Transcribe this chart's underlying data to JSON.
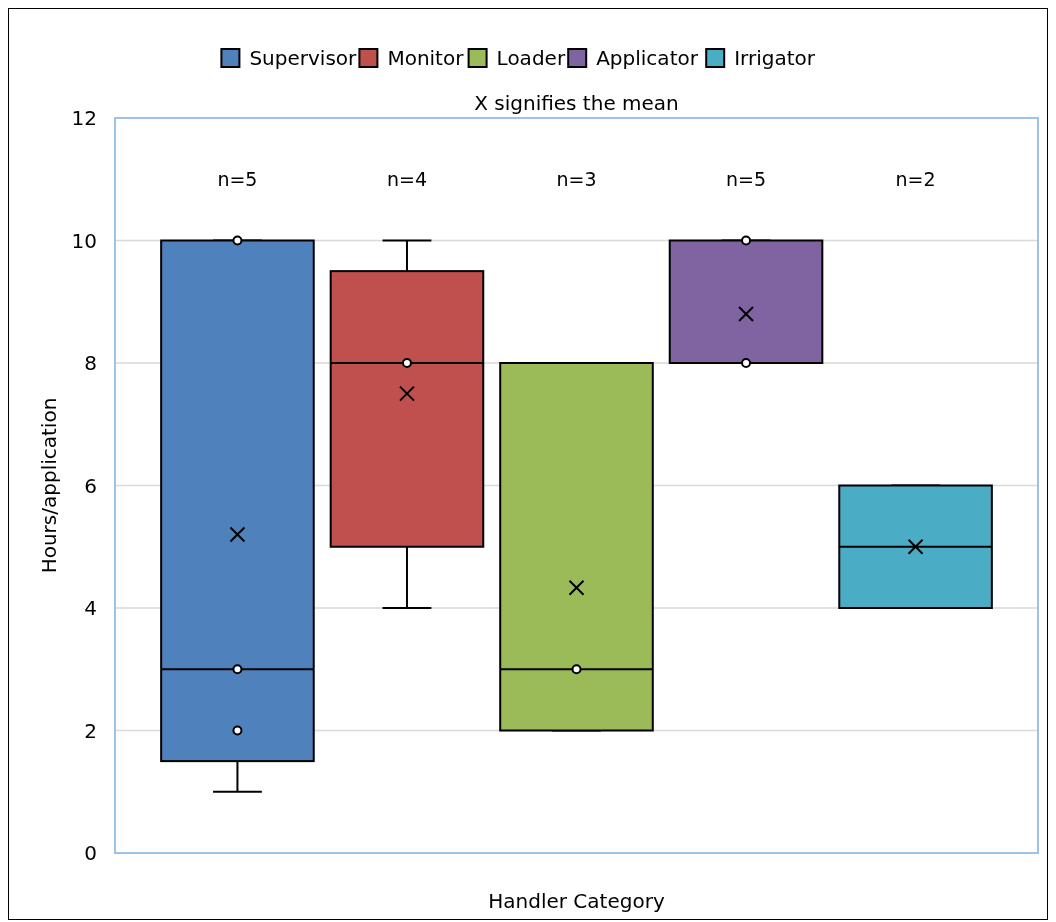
{
  "chart_data": {
    "type": "box",
    "xlabel": "Handler Category",
    "ylabel": "Hours/application",
    "annotations": [
      "X signifies the mean",
      "n=5",
      "n=4",
      "n=3",
      "n=5",
      "n=2"
    ],
    "categories": [
      null
    ],
    "series": [
      {
        "name": "Supervisor",
        "color": "#4f81bd",
        "boxes": [
          {
            "low": 1,
            "q1": 1.5,
            "median": 3,
            "q3": 10,
            "high": 10,
            "mean": 5.2,
            "outliers": [
              10,
              3,
              2
            ]
          }
        ]
      },
      {
        "name": "Monitor",
        "color": "#c0504d",
        "boxes": [
          {
            "low": 4,
            "q1": 5,
            "median": 8,
            "q3": 9.5,
            "high": 10,
            "mean": 7.5,
            "outliers": [
              8
            ]
          }
        ]
      },
      {
        "name": "Loader",
        "color": "#9bbb59",
        "boxes": [
          {
            "low": 2,
            "q1": 2,
            "median": 3,
            "q3": 8,
            "high": 8,
            "mean": 4.33,
            "outliers": [
              3
            ]
          }
        ]
      },
      {
        "name": "Applicator",
        "color": "#8064a2",
        "boxes": [
          {
            "low": 8,
            "q1": 8,
            "median": 8,
            "q3": 10,
            "high": 10,
            "mean": 8.8,
            "outliers": [
              10,
              8
            ]
          }
        ]
      },
      {
        "name": "Irrigator",
        "color": "#4bacc6",
        "boxes": [
          {
            "low": 4,
            "q1": 4,
            "median": 5,
            "q3": 6,
            "high": 6,
            "mean": 5
          }
        ]
      }
    ],
    "ylim": [
      0,
      12
    ],
    "yticks": [
      0,
      2,
      4,
      6,
      8,
      10,
      12
    ],
    "grid": "y",
    "legend": "top"
  }
}
